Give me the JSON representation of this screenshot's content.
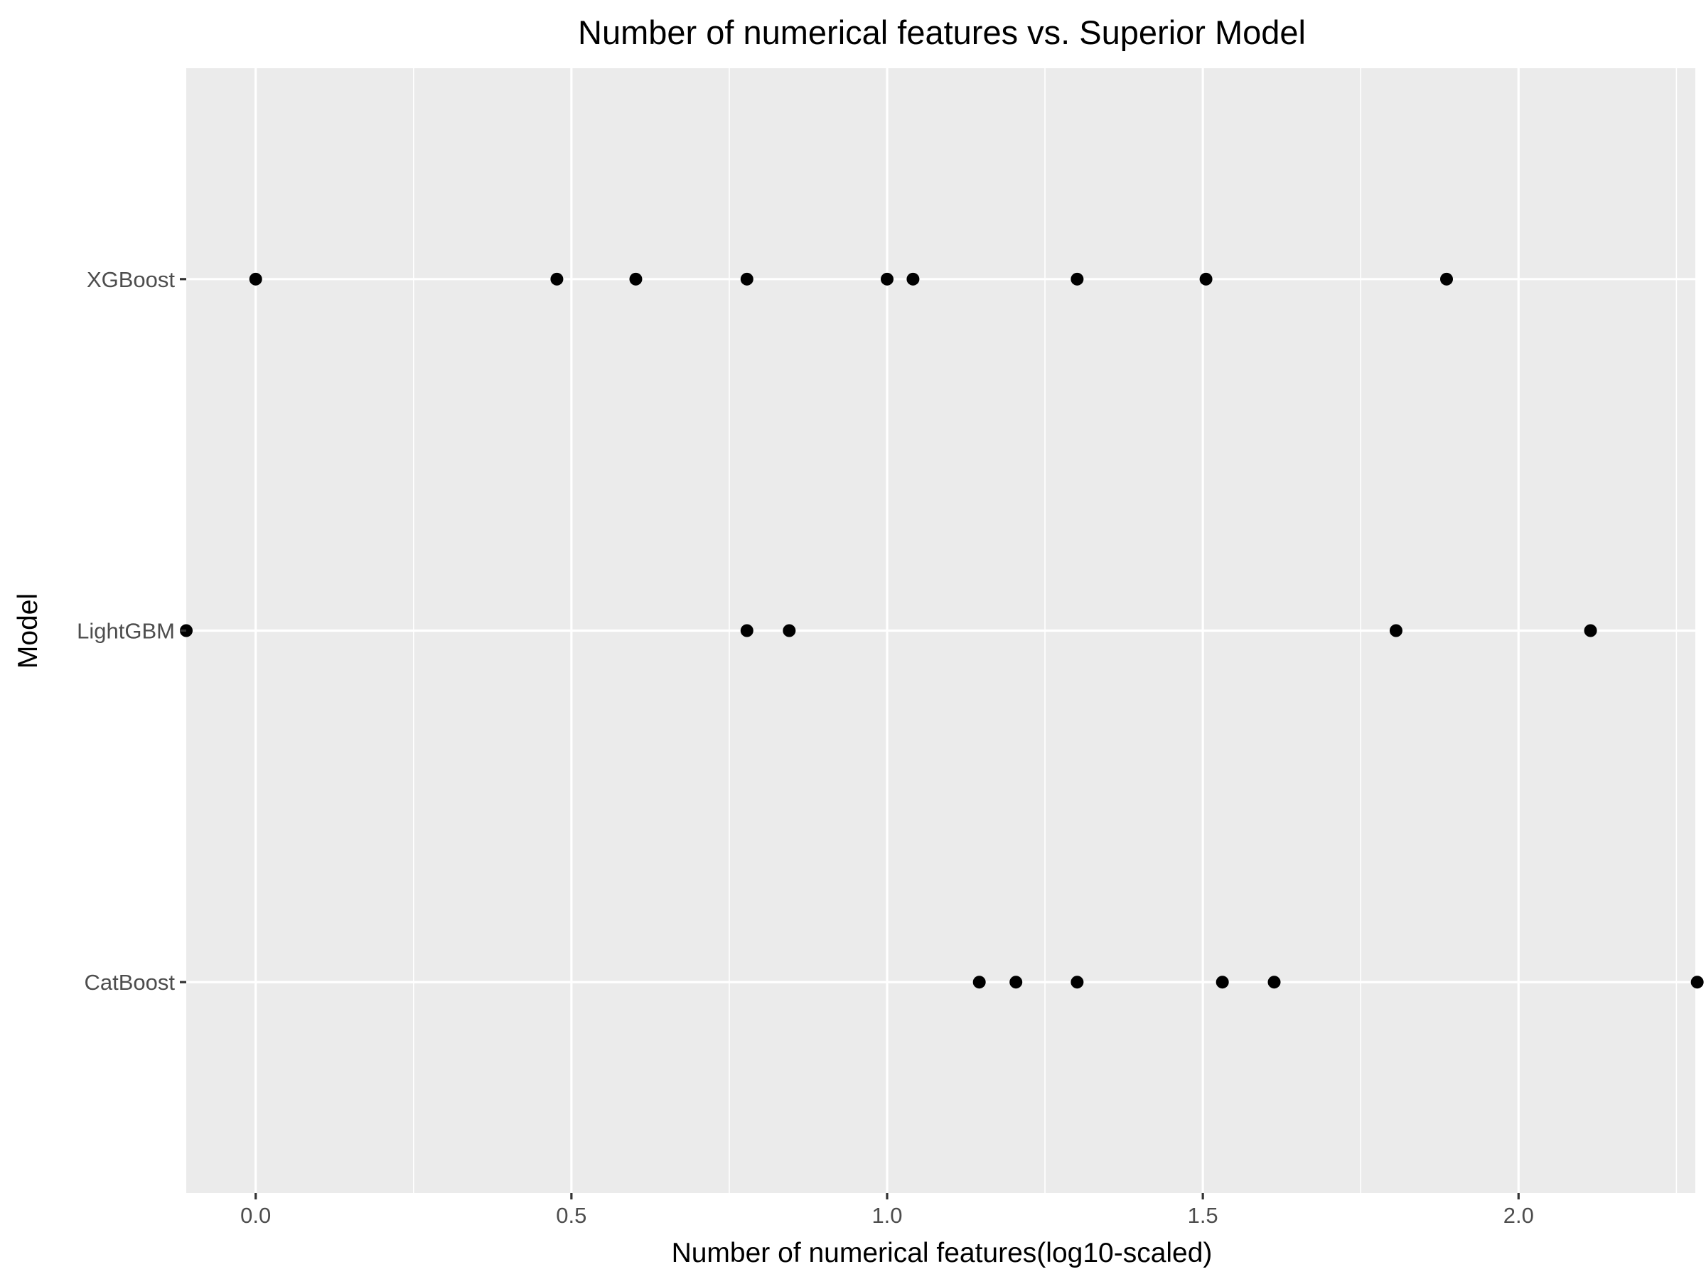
{
  "chart_data": {
    "type": "scatter",
    "title": "Number of numerical features vs. Superior Model",
    "xlabel": "Number of numerical features(log10-scaled)",
    "ylabel": "Model",
    "xlim": [
      -0.11,
      2.28
    ],
    "x_ticks": [
      {
        "value": 0.0,
        "label": "0.0"
      },
      {
        "value": 0.5,
        "label": "0.5"
      },
      {
        "value": 1.0,
        "label": "1.0"
      },
      {
        "value": 1.5,
        "label": "1.5"
      },
      {
        "value": 2.0,
        "label": "2.0"
      }
    ],
    "x_minor_breaks": [
      0.25,
      0.75,
      1.25,
      1.75,
      2.25
    ],
    "categories": [
      "CatBoost",
      "LightGBM",
      "XGBoost"
    ],
    "grid": true,
    "legend": "none",
    "series": [
      {
        "category": "XGBoost",
        "x": [
          0.0,
          0.477,
          0.602,
          0.778,
          1.0,
          1.041,
          1.301,
          1.505,
          1.886
        ]
      },
      {
        "category": "LightGBM",
        "x": [
          -0.11,
          0.778,
          0.845,
          1.806,
          2.114
        ]
      },
      {
        "category": "CatBoost",
        "x": [
          1.146,
          1.204,
          1.301,
          1.531,
          1.613,
          2.283
        ]
      }
    ],
    "point_color": "#000000",
    "panel_color": "#ebebeb"
  }
}
